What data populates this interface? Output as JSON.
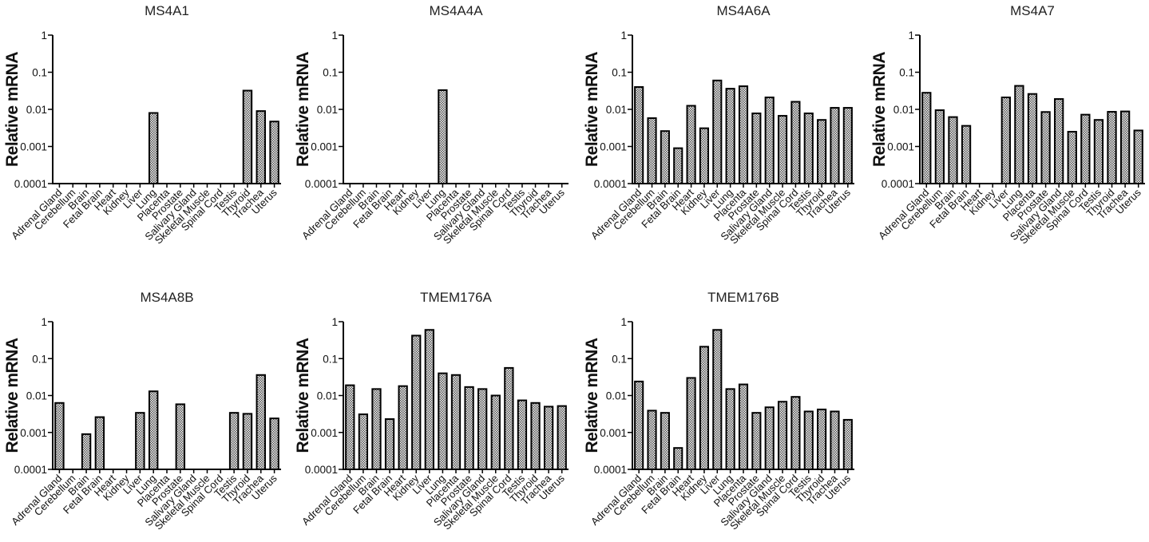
{
  "figure": {
    "description_tissues": [
      "Adrenal Gland",
      "Cerebellum",
      "Brain",
      "Fetal Brain",
      "Heart",
      "Kidney",
      "Liver",
      "Lung",
      "Placenta",
      "Prostate",
      "Salivary Gland",
      "Skeletal Muscle",
      "Spinal Cord",
      "Testis",
      "Thyroid",
      "Trachea",
      "Uterus"
    ],
    "colors": {
      "bar_fill": "#c8c8c8",
      "bar_stroke": "#000000",
      "axis": "#000000"
    }
  },
  "chart_data": [
    {
      "type": "bar",
      "title": "MS4A1",
      "ylabel": "Relative mRNA",
      "yscale": "log",
      "ylim": [
        0.0001,
        1
      ],
      "yticks": [
        "1",
        "0.1",
        "0.01",
        "0.001",
        "0.0001"
      ],
      "categories": [
        "Adrenal Gland",
        "Cerebellum",
        "Brain",
        "Fetal Brain",
        "Heart",
        "Kidney",
        "Liver",
        "Lung",
        "Placenta",
        "Prostate",
        "Salivary Gland",
        "Skeletal Muscle",
        "Spinal Cord",
        "Testis",
        "Thyroid",
        "Trachea",
        "Uterus"
      ],
      "values": [
        null,
        null,
        null,
        null,
        null,
        null,
        null,
        0.008,
        null,
        null,
        null,
        null,
        null,
        null,
        0.032,
        0.009,
        0.0047
      ]
    },
    {
      "type": "bar",
      "title": "MS4A4A",
      "ylabel": "Relative mRNA",
      "yscale": "log",
      "ylim": [
        0.0001,
        1
      ],
      "yticks": [
        "1",
        "0.1",
        "0.01",
        "0.001",
        "0.0001"
      ],
      "categories": [
        "Adrenal Gland",
        "Cerebellum",
        "Brain",
        "Fetal Brain",
        "Heart",
        "Kidney",
        "Liver",
        "Lung",
        "Placenta",
        "Prostate",
        "Salivary Gland",
        "Skeletal Muscle",
        "Spinal Cord",
        "Testis",
        "Thyroid",
        "Trachea",
        "Uterus"
      ],
      "values": [
        null,
        null,
        null,
        null,
        null,
        null,
        null,
        0.033,
        null,
        null,
        null,
        null,
        null,
        null,
        null,
        null,
        null
      ]
    },
    {
      "type": "bar",
      "title": "MS4A6A",
      "ylabel": "Relative mRNA",
      "yscale": "log",
      "ylim": [
        0.0001,
        1
      ],
      "yticks": [
        "1",
        "0.1",
        "0.01",
        "0.001",
        "0.0001"
      ],
      "categories": [
        "Adrenal Gland",
        "Cerebellum",
        "Brain",
        "Fetal Brain",
        "Heart",
        "Kidney",
        "Liver",
        "Lung",
        "Placenta",
        "Prostate",
        "Salivary Gland",
        "Skeletal Muscle",
        "Spinal Cord",
        "Testis",
        "Thyroid",
        "Trachea",
        "Uterus"
      ],
      "values": [
        0.04,
        0.0058,
        0.0026,
        0.0009,
        0.0125,
        0.0031,
        0.06,
        0.036,
        0.042,
        0.0078,
        0.021,
        0.0067,
        0.016,
        0.0078,
        0.0052,
        0.011,
        0.011
      ]
    },
    {
      "type": "bar",
      "title": "MS4A7",
      "ylabel": "Relative mRNA",
      "yscale": "log",
      "ylim": [
        0.0001,
        1
      ],
      "yticks": [
        "1",
        "0.1",
        "0.01",
        "0.001",
        "0.0001"
      ],
      "categories": [
        "Adrenal Gland",
        "Cerebellum",
        "Brain",
        "Fetal Brain",
        "Heart",
        "Kidney",
        "Liver",
        "Lung",
        "Placenta",
        "Prostate",
        "Salivary Gland",
        "Skeletal Muscle",
        "Spinal Cord",
        "Testis",
        "Thyroid",
        "Trachea",
        "Uterus"
      ],
      "values": [
        0.028,
        0.0095,
        0.0062,
        0.0036,
        null,
        null,
        0.021,
        0.043,
        0.026,
        0.0085,
        0.019,
        0.0025,
        0.0072,
        0.0052,
        0.0086,
        0.0088,
        0.0027
      ]
    },
    {
      "type": "bar",
      "title": "MS4A8B",
      "ylabel": "Relative mRNA",
      "yscale": "log",
      "ylim": [
        0.0001,
        1
      ],
      "yticks": [
        "1",
        "0.1",
        "0.01",
        "0.001",
        "0.0001"
      ],
      "categories": [
        "Adrenal Gland",
        "Cerebellum",
        "Brain",
        "Fetal Brain",
        "Heart",
        "Kidney",
        "Liver",
        "Lung",
        "Placenta",
        "Prostate",
        "Salivary Gland",
        "Skeletal Muscle",
        "Spinal Cord",
        "Testis",
        "Thyroid",
        "Trachea",
        "Uterus"
      ],
      "values": [
        0.0063,
        null,
        0.0009,
        0.0026,
        null,
        null,
        0.0034,
        0.013,
        null,
        0.0058,
        null,
        null,
        null,
        0.0034,
        0.0032,
        0.036,
        0.0024
      ]
    },
    {
      "type": "bar",
      "title": "TMEM176A",
      "ylabel": "Relative mRNA",
      "yscale": "log",
      "ylim": [
        0.0001,
        1
      ],
      "yticks": [
        "1",
        "0.1",
        "0.01",
        "0.001",
        "0.0001"
      ],
      "categories": [
        "Adrenal Gland",
        "Cerebellum",
        "Brain",
        "Fetal Brain",
        "Heart",
        "Kidney",
        "Liver",
        "Lung",
        "Placenta",
        "Prostate",
        "Salivary Gland",
        "Skeletal Muscle",
        "Spinal Cord",
        "Testis",
        "Thyroid",
        "Trachea",
        "Uterus"
      ],
      "values": [
        0.019,
        0.0031,
        0.015,
        0.0023,
        0.018,
        0.42,
        0.6,
        0.04,
        0.036,
        0.017,
        0.015,
        0.01,
        0.056,
        0.0074,
        0.0063,
        0.005,
        0.0052
      ]
    },
    {
      "type": "bar",
      "title": "TMEM176B",
      "ylabel": "Relative mRNA",
      "yscale": "log",
      "ylim": [
        0.0001,
        1
      ],
      "yticks": [
        "1",
        "0.1",
        "0.01",
        "0.001",
        "0.0001"
      ],
      "categories": [
        "Adrenal Gland",
        "Cerebellum",
        "Brain",
        "Fetal Brain",
        "Heart",
        "Kidney",
        "Liver",
        "Lung",
        "Placenta",
        "Prostate",
        "Salivary Gland",
        "Skeletal Muscle",
        "Spinal Cord",
        "Testis",
        "Thyroid",
        "Trachea",
        "Uterus"
      ],
      "values": [
        0.024,
        0.0039,
        0.0034,
        0.00038,
        0.03,
        0.21,
        0.6,
        0.015,
        0.02,
        0.0034,
        0.0048,
        0.0068,
        0.0092,
        0.0037,
        0.0042,
        0.0037,
        0.0022
      ]
    }
  ]
}
